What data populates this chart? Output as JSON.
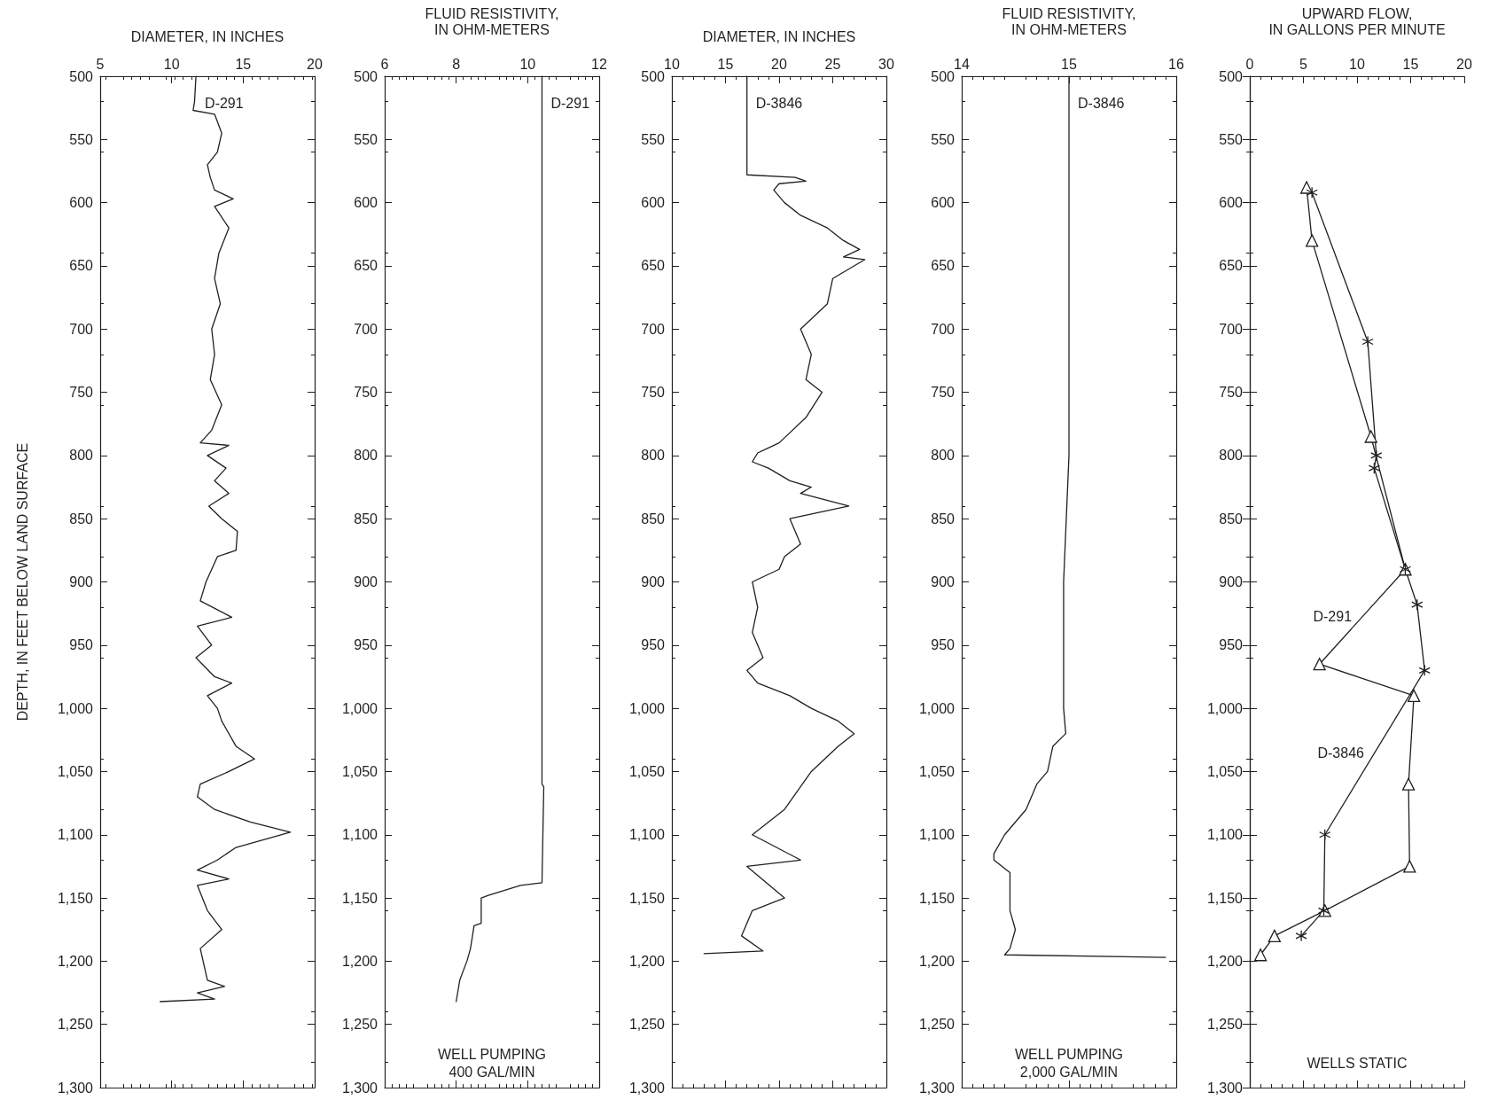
{
  "chart_data": [
    {
      "type": "line",
      "xlabel": "DIAMETER, IN INCHES",
      "ylabel": "DEPTH, IN FEET BELOW LAND SURFACE",
      "xlim": [
        5,
        20
      ],
      "xticks": [
        5,
        10,
        15,
        20
      ],
      "ylim": [
        1300,
        500
      ],
      "yticks": [
        500,
        550,
        600,
        650,
        700,
        750,
        800,
        850,
        900,
        950,
        {
          "value": 1000,
          "label": "1,000"
        },
        {
          "value": 1050,
          "label": "1,050"
        },
        {
          "value": 1100,
          "label": "1,100"
        },
        {
          "value": 1150,
          "label": "1,150"
        },
        {
          "value": 1200,
          "label": "1,200"
        },
        {
          "value": 1250,
          "label": "1,250"
        },
        {
          "value": 1300,
          "label": "1,300"
        }
      ],
      "grid": false,
      "marker": "none",
      "series": [
        {
          "name": "D-291",
          "color": "#231f20",
          "x": [
            11.7,
            11.6,
            11.5,
            13,
            13.5,
            13.2,
            12.5,
            12.7,
            13,
            14.3,
            13,
            14,
            13.3,
            13,
            13.4,
            12.8,
            13,
            12.7,
            13.5,
            12.8,
            12,
            14,
            12.5,
            13.8,
            13,
            14,
            12.6,
            13.5,
            14.6,
            14.5,
            13.2,
            12.4,
            12,
            14.2,
            11.8,
            12.8,
            11.7,
            13,
            14.2,
            12.5,
            13.2,
            13.5,
            14.5,
            15.8,
            14,
            12,
            11.8,
            13,
            15.5,
            18.3,
            14.5,
            13.2,
            11.8,
            14,
            11.8,
            12.5,
            13.5,
            12,
            12.2,
            12.5,
            13.7,
            11.8,
            13,
            9.2
          ],
          "values": [
            500,
            520,
            527,
            530,
            545,
            560,
            570,
            580,
            590,
            597,
            603,
            620,
            640,
            660,
            680,
            700,
            720,
            740,
            760,
            780,
            790,
            792,
            800,
            810,
            820,
            830,
            840,
            850,
            860,
            875,
            880,
            900,
            915,
            928,
            935,
            950,
            960,
            975,
            980,
            990,
            1000,
            1010,
            1030,
            1040,
            1050,
            1060,
            1070,
            1080,
            1090,
            1098,
            1110,
            1120,
            1128,
            1135,
            1140,
            1160,
            1175,
            1190,
            1200,
            1215,
            1220,
            1225,
            1230,
            1232
          ]
        }
      ]
    },
    {
      "type": "line",
      "xlabel": "FLUID RESISTIVITY,\nIN OHM-METERS",
      "xlim": [
        6,
        12
      ],
      "xticks": [
        6,
        8,
        10,
        12
      ],
      "ylim": [
        1300,
        500
      ],
      "yticks": [
        500,
        550,
        600,
        650,
        700,
        750,
        800,
        850,
        900,
        950,
        {
          "value": 1000,
          "label": "1,000"
        },
        {
          "value": 1050,
          "label": "1,050"
        },
        {
          "value": 1100,
          "label": "1,100"
        },
        {
          "value": 1150,
          "label": "1,150"
        },
        {
          "value": 1200,
          "label": "1,200"
        },
        {
          "value": 1250,
          "label": "1,250"
        },
        {
          "value": 1300,
          "label": "1,300"
        }
      ],
      "grid": false,
      "marker": "none",
      "series": [
        {
          "name": "D-291",
          "color": "#231f20",
          "x": [
            10.4,
            10.4,
            10.45,
            10.4,
            9.8,
            8.9,
            8.7,
            8.7,
            8.5,
            8.4,
            8.3,
            8.1,
            8.0
          ],
          "values": [
            500,
            1060,
            1062,
            1138,
            1140,
            1148,
            1150,
            1170,
            1172,
            1190,
            1200,
            1215,
            1232
          ]
        }
      ],
      "annotations": [
        "WELL PUMPING\n400 GAL/MIN"
      ]
    },
    {
      "type": "line",
      "xlabel": "DIAMETER, IN INCHES",
      "xlim": [
        10,
        30
      ],
      "xticks": [
        10,
        15,
        20,
        25,
        30
      ],
      "ylim": [
        1300,
        500
      ],
      "yticks": [
        500,
        550,
        600,
        650,
        700,
        750,
        800,
        850,
        900,
        950,
        {
          "value": 1000,
          "label": "1,000"
        },
        {
          "value": 1050,
          "label": "1,050"
        },
        {
          "value": 1100,
          "label": "1,100"
        },
        {
          "value": 1150,
          "label": "1,150"
        },
        {
          "value": 1200,
          "label": "1,200"
        },
        {
          "value": 1250,
          "label": "1,250"
        },
        {
          "value": 1300,
          "label": "1,300"
        }
      ],
      "grid": false,
      "marker": "none",
      "series": [
        {
          "name": "D-3846",
          "color": "#231f20",
          "x": [
            17,
            17,
            21.5,
            22.5,
            20,
            19.5,
            20.5,
            22,
            24.5,
            26,
            27.5,
            26,
            28,
            25,
            24.5,
            22,
            23,
            22.5,
            24,
            22.5,
            20,
            18,
            17.5,
            19,
            21,
            23,
            22,
            26.5,
            21,
            22,
            20.5,
            20,
            17.5,
            18,
            17.5,
            18.5,
            17,
            18,
            21,
            23,
            25.5,
            27,
            25.5,
            23,
            20.5,
            17.5,
            22,
            17,
            20.5,
            17.5,
            16.5,
            18.5,
            13
          ],
          "values": [
            500,
            578,
            580,
            583,
            585,
            590,
            600,
            610,
            620,
            630,
            637,
            643,
            645,
            660,
            680,
            700,
            720,
            740,
            750,
            770,
            790,
            798,
            805,
            810,
            820,
            825,
            830,
            840,
            850,
            870,
            880,
            890,
            900,
            920,
            940,
            960,
            970,
            980,
            990,
            1000,
            1010,
            1020,
            1030,
            1050,
            1080,
            1100,
            1120,
            1125,
            1150,
            1160,
            1180,
            1192,
            1194
          ]
        }
      ]
    },
    {
      "type": "line",
      "xlabel": "FLUID RESISTIVITY,\nIN OHM-METERS",
      "xlim": [
        14,
        16
      ],
      "xticks": [
        14,
        15,
        16
      ],
      "ylim": [
        1300,
        500
      ],
      "yticks": [
        500,
        550,
        600,
        650,
        700,
        750,
        800,
        850,
        900,
        950,
        {
          "value": 1000,
          "label": "1,000"
        },
        {
          "value": 1050,
          "label": "1,050"
        },
        {
          "value": 1100,
          "label": "1,100"
        },
        {
          "value": 1150,
          "label": "1,150"
        },
        {
          "value": 1200,
          "label": "1,200"
        },
        {
          "value": 1250,
          "label": "1,250"
        },
        {
          "value": 1300,
          "label": "1,300"
        }
      ],
      "grid": false,
      "marker": "none",
      "series": [
        {
          "name": "D-3846",
          "color": "#231f20",
          "x": [
            15,
            15,
            15,
            14.95,
            14.95,
            14.97,
            14.85,
            14.8,
            14.7,
            14.6,
            14.4,
            14.3,
            14.3,
            14.45,
            14.45,
            14.5,
            14.45,
            14.4,
            15.9
          ],
          "values": [
            500,
            700,
            800,
            900,
            1000,
            1020,
            1030,
            1050,
            1060,
            1080,
            1100,
            1115,
            1120,
            1130,
            1160,
            1175,
            1190,
            1195,
            1197
          ]
        }
      ],
      "annotations": [
        "WELL PUMPING\n2,000 GAL/MIN"
      ]
    },
    {
      "type": "line",
      "xlabel": "UPWARD FLOW,\nIN GALLONS PER MINUTE",
      "xlim": [
        0,
        20
      ],
      "xticks": [
        0,
        5,
        10,
        15,
        20
      ],
      "ylim": [
        1300,
        500
      ],
      "yticks": [
        500,
        550,
        600,
        650,
        700,
        750,
        800,
        850,
        900,
        950,
        {
          "value": 1000,
          "label": "1,000"
        },
        {
          "value": 1050,
          "label": "1,050"
        },
        {
          "value": 1100,
          "label": "1,100"
        },
        {
          "value": 1150,
          "label": "1,150"
        },
        {
          "value": 1200,
          "label": "1,200"
        },
        {
          "value": 1250,
          "label": "1,250"
        },
        {
          "value": 1300,
          "label": "1,300"
        }
      ],
      "grid": false,
      "series": [
        {
          "name": "D-291",
          "color": "#231f20",
          "marker": "triangle",
          "x": [
            5.3,
            5.8,
            11.3,
            14.5,
            6.5,
            15.3,
            14.8,
            14.9,
            7.0,
            2.3,
            1.0
          ],
          "values": [
            588,
            630,
            785,
            890,
            965,
            990,
            1060,
            1125,
            1160,
            1180,
            1195
          ]
        },
        {
          "name": "D-3846",
          "color": "#231f20",
          "marker": "cross",
          "x": [
            5.8,
            11,
            11.8,
            11.6,
            14.5,
            15.6,
            16.3,
            7.0,
            6.9,
            4.8
          ],
          "values": [
            592,
            710,
            800,
            810,
            890,
            918,
            970,
            1100,
            1160,
            1180
          ]
        }
      ],
      "annotations": [
        "WELLS STATIC"
      ]
    }
  ]
}
